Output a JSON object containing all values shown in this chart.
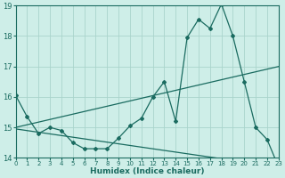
{
  "xlabel": "Humidex (Indice chaleur)",
  "bg_color": "#ceeee8",
  "grid_color": "#aad4cc",
  "line_color": "#1a6b60",
  "xlim": [
    0,
    23
  ],
  "ylim": [
    14,
    19
  ],
  "yticks": [
    14,
    15,
    16,
    17,
    18,
    19
  ],
  "xticks": [
    0,
    1,
    2,
    3,
    4,
    5,
    6,
    7,
    8,
    9,
    10,
    11,
    12,
    13,
    14,
    15,
    16,
    17,
    18,
    19,
    20,
    21,
    22,
    23
  ],
  "curve1_x": [
    0,
    1,
    2,
    3,
    4,
    5,
    6,
    7,
    8,
    9,
    10,
    11,
    12,
    13,
    14,
    15,
    16,
    17,
    18,
    19,
    20,
    21,
    22,
    23
  ],
  "curve1_y": [
    16.05,
    15.35,
    14.8,
    15.0,
    14.9,
    14.5,
    14.3,
    14.3,
    14.3,
    14.65,
    15.05,
    15.3,
    16.0,
    16.5,
    15.2,
    17.95,
    18.55,
    18.25,
    19.05,
    18.0,
    16.5,
    15.0,
    14.6,
    13.7
  ],
  "curve2_x": [
    0,
    23
  ],
  "curve2_y": [
    15.0,
    17.0
  ],
  "curve3_x": [
    0,
    23
  ],
  "curve3_y": [
    14.95,
    13.7
  ],
  "xlabel_fontsize": 6.5,
  "xtick_fontsize": 5.0,
  "ytick_fontsize": 6.0
}
